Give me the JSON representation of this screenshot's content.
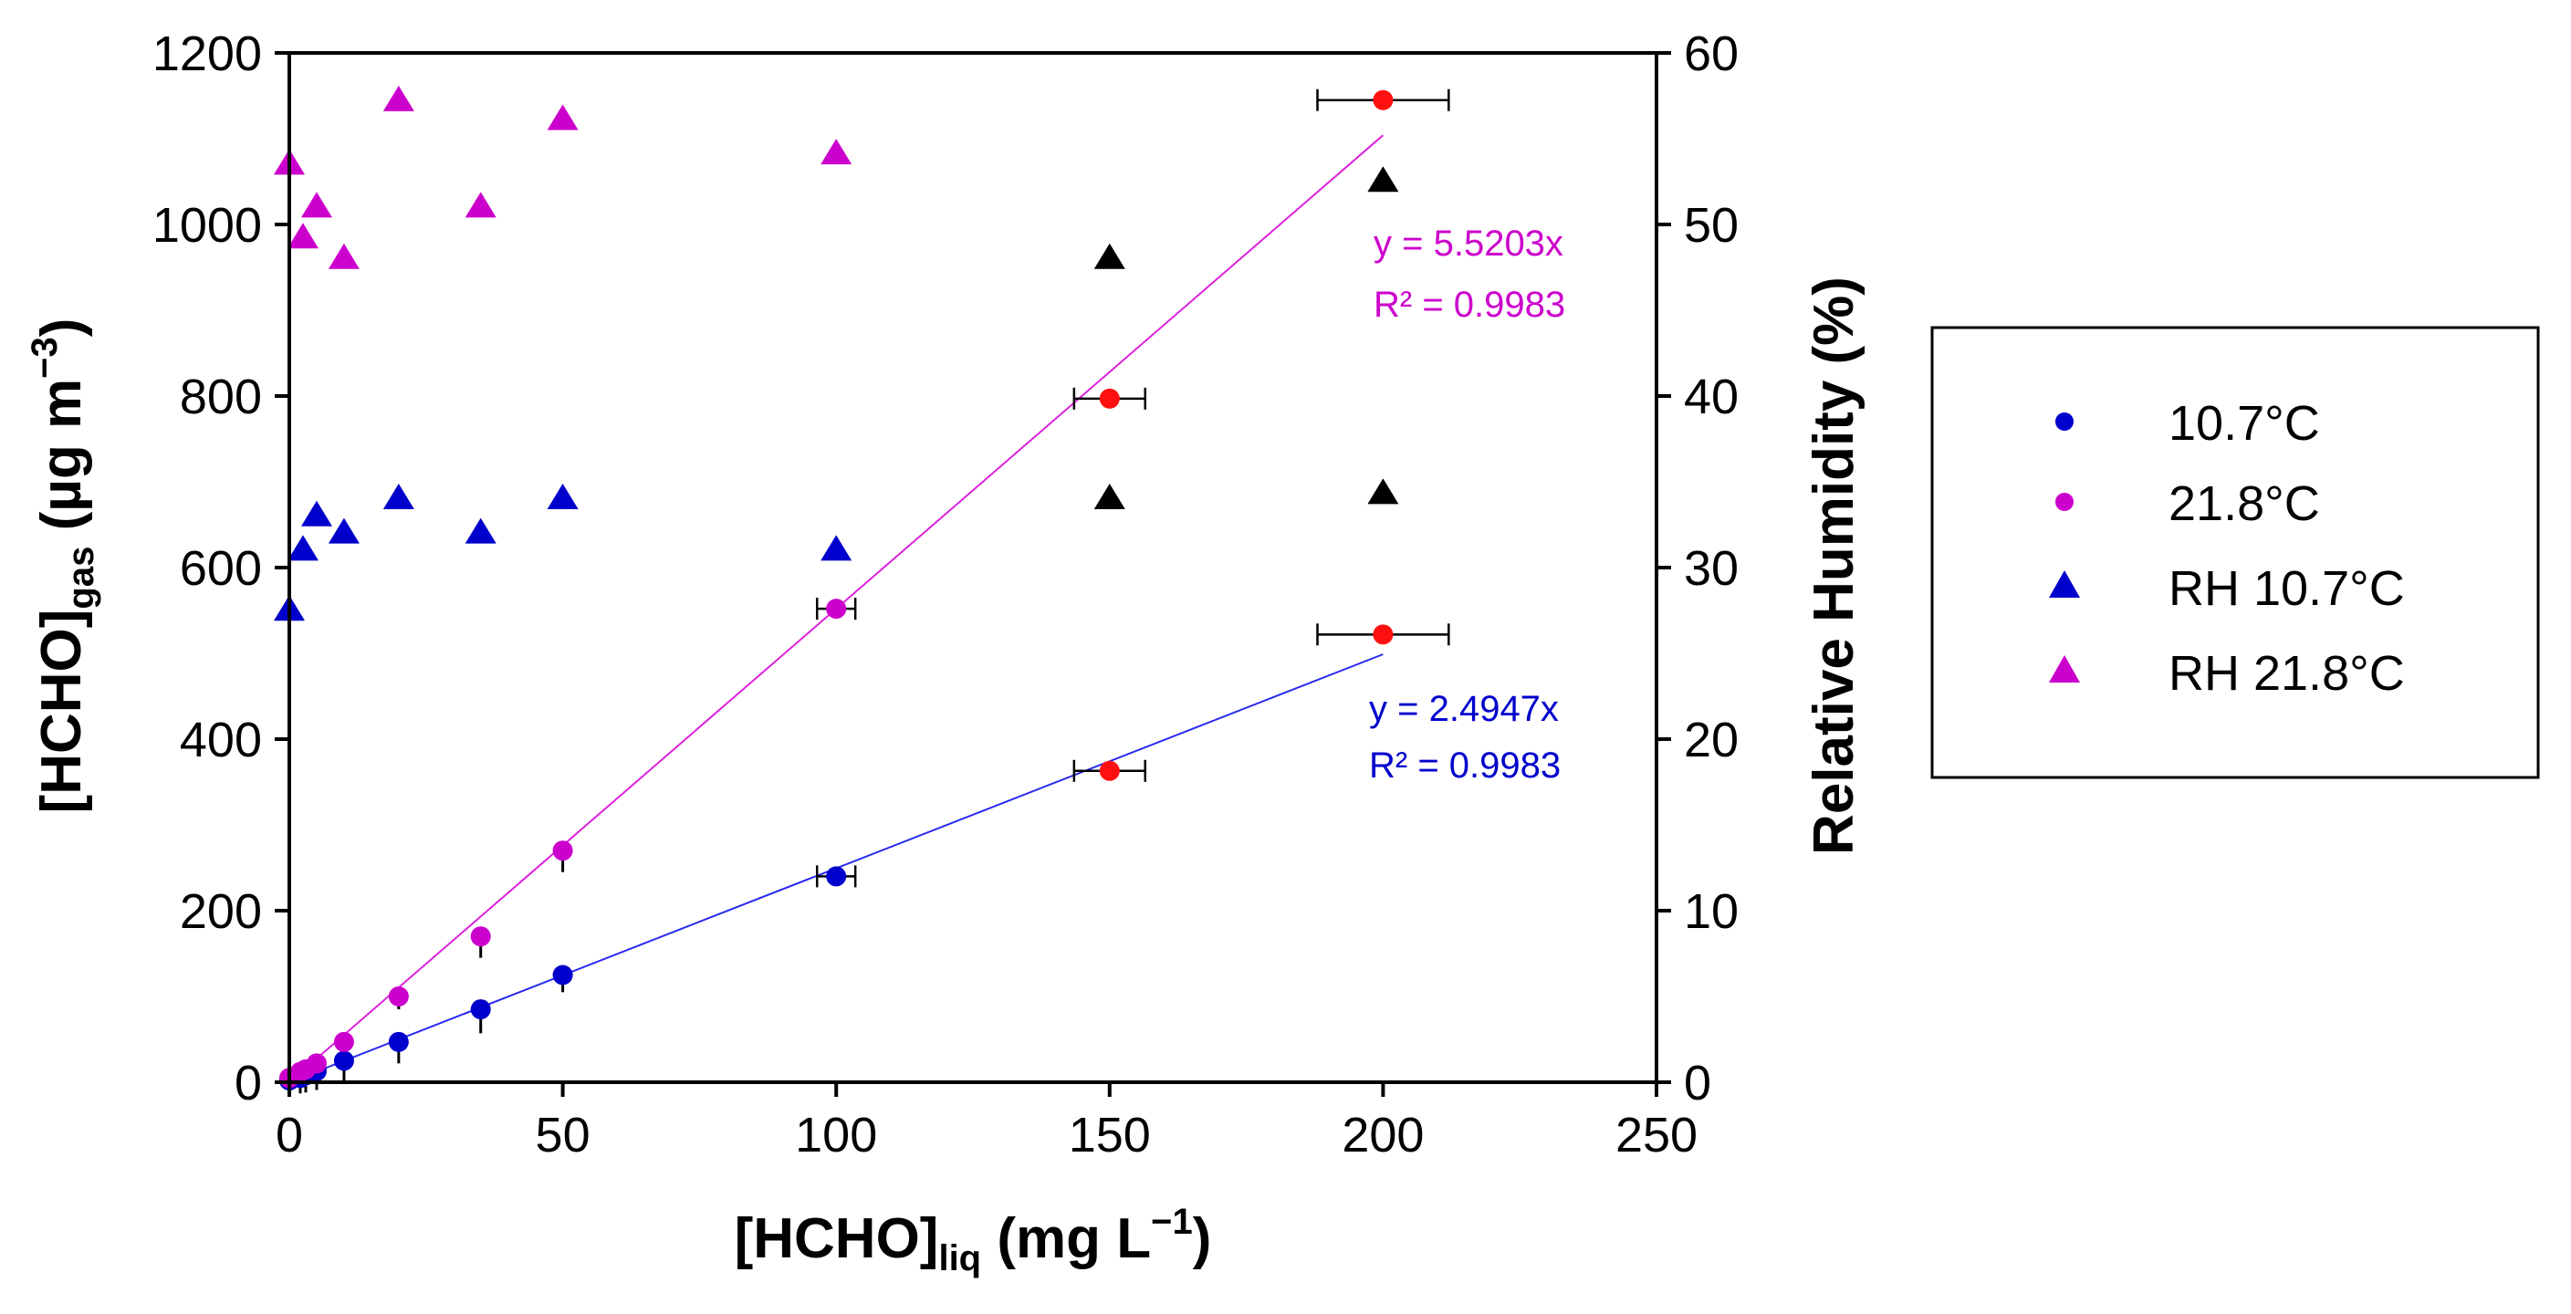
{
  "chart_data": {
    "type": "scatter",
    "xlabel": {
      "main": "[HCHO]",
      "sub": "liq",
      "unit": " (mg L",
      "sup": "−1",
      "close": ")"
    },
    "ylabel_left": {
      "main": "[HCHO]",
      "sub": "gas",
      "unit": " (µg m",
      "sup": "−3",
      "close": ")"
    },
    "ylabel_right": "Relative Humidity (%)",
    "xlim": [
      0,
      250
    ],
    "ylim_left": [
      0,
      1200
    ],
    "ylim_right": [
      0,
      60
    ],
    "x_ticks": [
      0,
      50,
      100,
      150,
      200,
      250
    ],
    "y_left_ticks": [
      0,
      200,
      400,
      600,
      800,
      1000,
      1200
    ],
    "y_right_ticks": [
      0,
      10,
      20,
      30,
      40,
      50,
      60
    ],
    "colors": {
      "t10": "#0000cc",
      "t21": "#cc00cc",
      "red": "#ff1010",
      "black": "#000000",
      "fit10": "#2a2aee",
      "fit21": "#dd22dd"
    },
    "series": [
      {
        "name": "10.7°C",
        "key": "t10",
        "marker": "circle",
        "axis": "left",
        "points": [
          {
            "x": 0,
            "y": 2,
            "color": "t10",
            "yerr": 5
          },
          {
            "x": 2,
            "y": 5,
            "color": "t10",
            "yerr": 18
          },
          {
            "x": 3,
            "y": 8,
            "color": "t10",
            "yerr": 20
          },
          {
            "x": 5,
            "y": 13,
            "color": "t10",
            "yerr": 22
          },
          {
            "x": 10,
            "y": 25,
            "color": "t10",
            "yerr": 25
          },
          {
            "x": 20,
            "y": 47,
            "color": "t10",
            "yerr": 25
          },
          {
            "x": 35,
            "y": 85,
            "color": "t10",
            "yerr": 28
          },
          {
            "x": 50,
            "y": 125,
            "color": "t10",
            "yerr": 20
          },
          {
            "x": 100,
            "y": 240,
            "color": "t10",
            "xerr": 3.5
          },
          {
            "x": 150,
            "y": 363,
            "color": "red",
            "xerr": 6.5
          },
          {
            "x": 200,
            "y": 522,
            "color": "red",
            "xerr": 12
          }
        ]
      },
      {
        "name": "21.8°C",
        "key": "t21",
        "marker": "circle",
        "axis": "left",
        "points": [
          {
            "x": 0,
            "y": 5,
            "color": "t21",
            "yerr": 5
          },
          {
            "x": 2,
            "y": 12,
            "color": "t21",
            "yerr": 8
          },
          {
            "x": 3,
            "y": 15,
            "color": "t21",
            "yerr": 10
          },
          {
            "x": 5,
            "y": 22,
            "color": "t21",
            "yerr": 12
          },
          {
            "x": 10,
            "y": 47,
            "color": "t21",
            "yerr": 10
          },
          {
            "x": 20,
            "y": 100,
            "color": "t21",
            "yerr": 15
          },
          {
            "x": 35,
            "y": 170,
            "color": "t21",
            "yerr": 25
          },
          {
            "x": 50,
            "y": 270,
            "color": "t21",
            "yerr": 25
          },
          {
            "x": 100,
            "y": 552,
            "color": "t21",
            "xerr": 3.5
          },
          {
            "x": 150,
            "y": 797,
            "color": "red",
            "xerr": 6.5
          },
          {
            "x": 200,
            "y": 1145,
            "color": "red",
            "xerr": 12
          }
        ]
      },
      {
        "name": "RH 10.7°C",
        "key": "t10",
        "marker": "triangle",
        "axis": "right",
        "points": [
          {
            "x": 0,
            "y": 27.5,
            "color": "t10"
          },
          {
            "x": 2.5,
            "y": 31,
            "color": "t10"
          },
          {
            "x": 5,
            "y": 33,
            "color": "t10"
          },
          {
            "x": 10,
            "y": 32,
            "color": "t10"
          },
          {
            "x": 20,
            "y": 34,
            "color": "t10"
          },
          {
            "x": 35,
            "y": 32,
            "color": "t10"
          },
          {
            "x": 50,
            "y": 34,
            "color": "t10"
          },
          {
            "x": 100,
            "y": 31,
            "color": "t10"
          },
          {
            "x": 150,
            "y": 34,
            "color": "black"
          },
          {
            "x": 200,
            "y": 34.3,
            "color": "black"
          }
        ]
      },
      {
        "name": "RH 21.8°C",
        "key": "t21",
        "marker": "triangle",
        "axis": "right",
        "points": [
          {
            "x": 0,
            "y": 53.5,
            "color": "t21"
          },
          {
            "x": 2.5,
            "y": 49.2,
            "color": "t21"
          },
          {
            "x": 5,
            "y": 51,
            "color": "t21"
          },
          {
            "x": 10,
            "y": 48,
            "color": "t21"
          },
          {
            "x": 20,
            "y": 57.2,
            "color": "t21"
          },
          {
            "x": 35,
            "y": 51,
            "color": "t21"
          },
          {
            "x": 50,
            "y": 56.1,
            "color": "t21"
          },
          {
            "x": 100,
            "y": 54.1,
            "color": "t21"
          },
          {
            "x": 150,
            "y": 48,
            "color": "black"
          },
          {
            "x": 200,
            "y": 52.5,
            "color": "black"
          }
        ]
      }
    ],
    "fits": [
      {
        "name": "fit-21-8",
        "slope": 5.5203,
        "x_range": [
          0,
          200
        ],
        "color": "fit21",
        "equation": "y = 5.5203x",
        "r2": "R² = 0.9983"
      },
      {
        "name": "fit-10-7",
        "slope": 2.4947,
        "x_range": [
          0,
          200
        ],
        "color": "fit10",
        "equation": "y = 2.4947x",
        "r2": "R² = 0.9983"
      }
    ]
  }
}
